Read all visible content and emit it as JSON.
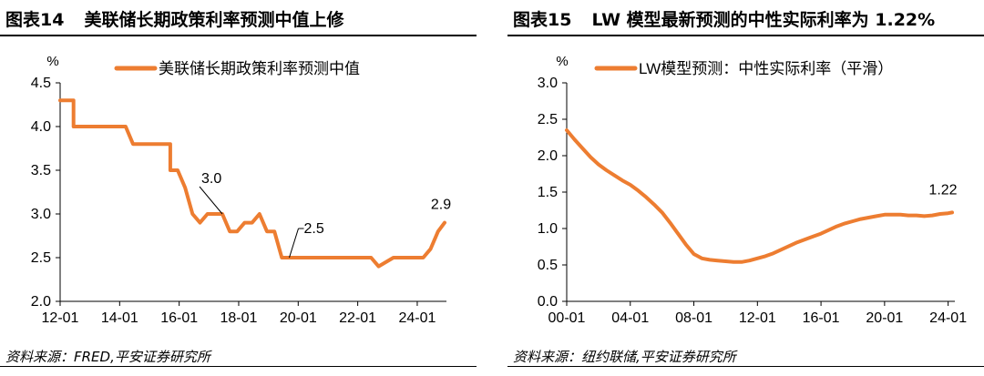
{
  "panels": [
    {
      "fig_label": "图表14",
      "title": "美联储长期政策利率预测中值上修",
      "source": "资料来源：FRED,平安证券研究所"
    },
    {
      "fig_label": "图表15",
      "title": "LW 模型最新预测的中性实际利率为 1.22%",
      "source": "资料来源：纽约联储,平安证券研究所"
    }
  ],
  "colors": {
    "series": "#ED7D31",
    "axis": "#000000",
    "text": "#000000"
  },
  "chart_data": [
    {
      "type": "line",
      "unit_label": "%",
      "legend": {
        "position": "top",
        "entries": [
          "美联储长期政策利率预测中值"
        ]
      },
      "grid": false,
      "x_range": [
        2012.0,
        2024.92
      ],
      "ylim": [
        2.0,
        4.5
      ],
      "yticks": [
        "2.0",
        "2.5",
        "3.0",
        "3.5",
        "4.0",
        "4.5"
      ],
      "xticks": [
        {
          "label": "12-01",
          "x": 2012.0
        },
        {
          "label": "14-01",
          "x": 2014.0
        },
        {
          "label": "16-01",
          "x": 2016.0
        },
        {
          "label": "18-01",
          "x": 2018.0
        },
        {
          "label": "20-01",
          "x": 2020.0
        },
        {
          "label": "22-01",
          "x": 2022.0
        },
        {
          "label": "24-01",
          "x": 2024.0
        }
      ],
      "series": [
        {
          "name": "美联储长期政策利率预测中值",
          "x": [
            2012.0,
            2012.45,
            2012.45,
            2012.7,
            2012.7,
            2013.2,
            2013.45,
            2013.7,
            2013.95,
            2013.95,
            2014.2,
            2014.45,
            2014.7,
            2014.95,
            2014.95,
            2015.2,
            2015.45,
            2015.7,
            2015.7,
            2015.95,
            2016.2,
            2016.45,
            2016.7,
            2016.95,
            2017.2,
            2017.45,
            2017.7,
            2017.95,
            2018.2,
            2018.45,
            2018.7,
            2018.95,
            2019.2,
            2019.45,
            2019.7,
            2020.2,
            2020.45,
            2020.95,
            2021.45,
            2021.95,
            2022.2,
            2022.45,
            2022.7,
            2023.2,
            2023.45,
            2023.7,
            2023.95,
            2024.2,
            2024.45,
            2024.7,
            2024.92
          ],
          "y": [
            4.3,
            4.3,
            4.0,
            4.0,
            4.0,
            4.0,
            4.0,
            4.0,
            4.0,
            4.0,
            4.0,
            3.8,
            3.8,
            3.8,
            3.8,
            3.8,
            3.8,
            3.8,
            3.5,
            3.5,
            3.3,
            3.0,
            2.9,
            3.0,
            3.0,
            3.0,
            2.8,
            2.8,
            2.9,
            2.9,
            3.0,
            2.8,
            2.8,
            2.5,
            2.5,
            2.5,
            2.5,
            2.5,
            2.5,
            2.5,
            2.5,
            2.5,
            2.4,
            2.5,
            2.5,
            2.5,
            2.5,
            2.5,
            2.6,
            2.8,
            2.9
          ]
        }
      ],
      "annotations": [
        {
          "text": "3.0",
          "x": 2017.45,
          "y": 3.0,
          "kind": "leader"
        },
        {
          "text": "2.5",
          "x": 2019.7,
          "y": 2.5,
          "kind": "leader"
        },
        {
          "text": "2.9",
          "x": 2024.92,
          "y": 2.9,
          "kind": "above"
        }
      ]
    },
    {
      "type": "line",
      "unit_label": "%",
      "legend": {
        "position": "top",
        "entries": [
          "LW模型预测：中性实际利率（平滑）"
        ]
      },
      "grid": false,
      "x_range": [
        2000.0,
        2024.25
      ],
      "ylim": [
        0.0,
        3.0
      ],
      "yticks": [
        "0.0",
        "0.5",
        "1.0",
        "1.5",
        "2.0",
        "2.5",
        "3.0"
      ],
      "xticks": [
        {
          "label": "00-01",
          "x": 2000.0
        },
        {
          "label": "04-01",
          "x": 2004.0
        },
        {
          "label": "08-01",
          "x": 2008.0
        },
        {
          "label": "12-01",
          "x": 2012.0
        },
        {
          "label": "16-01",
          "x": 2016.0
        },
        {
          "label": "20-01",
          "x": 2020.0
        },
        {
          "label": "24-01",
          "x": 2024.0
        }
      ],
      "series": [
        {
          "name": "LW模型预测：中性实际利率（平滑）",
          "x": [
            2000.0,
            2000.5,
            2001.0,
            2001.5,
            2002.0,
            2002.5,
            2003.0,
            2003.5,
            2004.0,
            2004.5,
            2005.0,
            2005.5,
            2006.0,
            2006.5,
            2007.0,
            2007.5,
            2008.0,
            2008.5,
            2009.0,
            2009.5,
            2010.0,
            2010.5,
            2011.0,
            2011.5,
            2012.0,
            2012.5,
            2013.0,
            2013.5,
            2014.0,
            2014.5,
            2015.0,
            2015.5,
            2016.0,
            2016.5,
            2017.0,
            2017.5,
            2018.0,
            2018.5,
            2019.0,
            2019.5,
            2020.0,
            2020.5,
            2021.0,
            2021.5,
            2022.0,
            2022.5,
            2023.0,
            2023.5,
            2024.0,
            2024.25
          ],
          "y": [
            2.35,
            2.22,
            2.1,
            1.98,
            1.88,
            1.8,
            1.73,
            1.66,
            1.6,
            1.52,
            1.43,
            1.33,
            1.22,
            1.08,
            0.93,
            0.78,
            0.65,
            0.59,
            0.57,
            0.56,
            0.55,
            0.54,
            0.54,
            0.56,
            0.59,
            0.62,
            0.66,
            0.71,
            0.76,
            0.81,
            0.85,
            0.89,
            0.93,
            0.98,
            1.03,
            1.07,
            1.1,
            1.13,
            1.15,
            1.17,
            1.19,
            1.19,
            1.19,
            1.18,
            1.18,
            1.17,
            1.18,
            1.2,
            1.21,
            1.22
          ]
        }
      ],
      "annotations": [
        {
          "text": "1.22",
          "x": 2024.25,
          "y": 1.22,
          "kind": "above"
        }
      ]
    }
  ]
}
